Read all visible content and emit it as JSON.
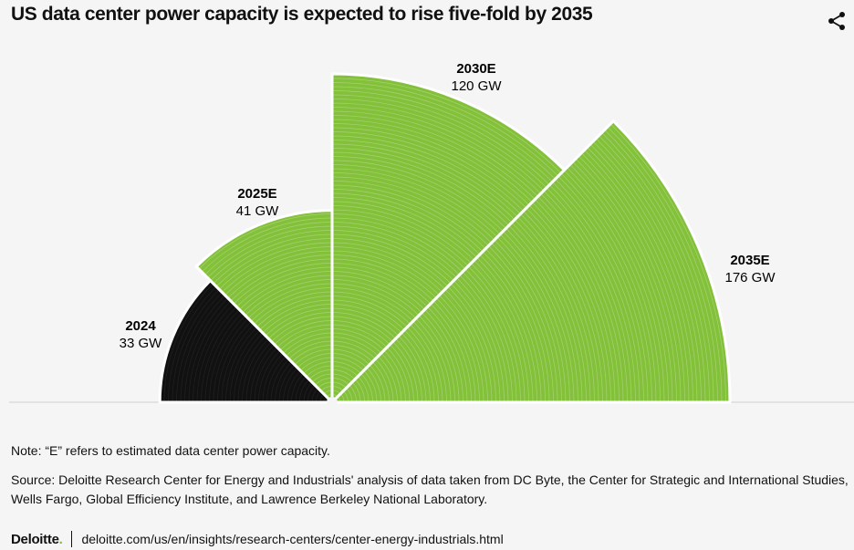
{
  "title": "US data center power capacity is expected to rise five-fold by 2035",
  "chart_data": {
    "type": "polar-area",
    "title": "US data center power capacity is expected to rise five-fold by 2035",
    "unit": "GW",
    "categories": [
      "2024",
      "2025E",
      "2030E",
      "2035E"
    ],
    "values": [
      33,
      41,
      120,
      176
    ],
    "value_labels": [
      "33 GW",
      "41 GW",
      "120 GW",
      "176 GW"
    ],
    "colors": [
      "#111111",
      "#84c13a",
      "#84c13a",
      "#84c13a"
    ]
  },
  "note": "Note: “E” refers to estimated data center power capacity.",
  "source": "Source: Deloitte Research Center for Energy and Industrials' analysis of data taken from DC Byte, the Center for Strategic and International Studies, Wells Fargo, Global Efficiency Institute, and Lawrence Berkeley National Laboratory.",
  "footer": {
    "brand": "Deloitte",
    "brand_dot": ".",
    "url": "deloitte.com/us/en/insights/research-centers/center-energy-industrials.html"
  },
  "icons": {
    "share": "share-icon"
  }
}
